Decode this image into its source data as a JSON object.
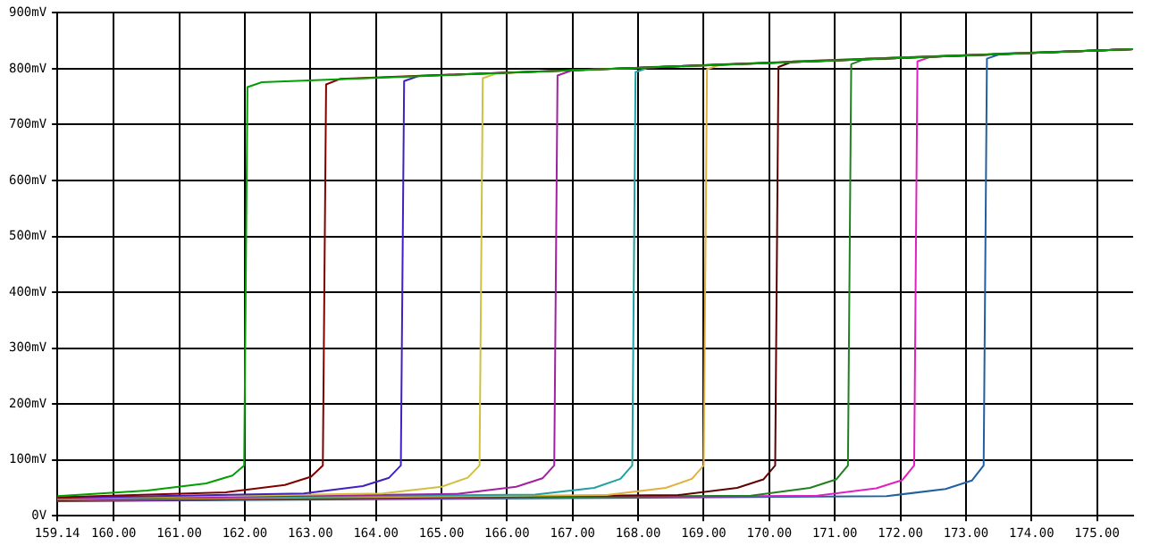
{
  "chart_data": {
    "type": "line",
    "xlim": [
      159.14,
      175.55
    ],
    "ylim": [
      0,
      900
    ],
    "xticks": [
      {
        "value": 159.14,
        "label": "159.14"
      },
      {
        "value": 160,
        "label": "160.00"
      },
      {
        "value": 161,
        "label": "161.00"
      },
      {
        "value": 162,
        "label": "162.00"
      },
      {
        "value": 163,
        "label": "163.00"
      },
      {
        "value": 164,
        "label": "164.00"
      },
      {
        "value": 165,
        "label": "165.00"
      },
      {
        "value": 166,
        "label": "166.00"
      },
      {
        "value": 167,
        "label": "167.00"
      },
      {
        "value": 168,
        "label": "168.00"
      },
      {
        "value": 169,
        "label": "169.00"
      },
      {
        "value": 170,
        "label": "170.00"
      },
      {
        "value": 171,
        "label": "171.00"
      },
      {
        "value": 172,
        "label": "172.00"
      },
      {
        "value": 173,
        "label": "173.00"
      },
      {
        "value": 174,
        "label": "174.00"
      },
      {
        "value": 175,
        "label": "175.00"
      }
    ],
    "yticks": [
      {
        "value": 0,
        "label": "0V"
      },
      {
        "value": 100,
        "label": "100mV"
      },
      {
        "value": 200,
        "label": "200mV"
      },
      {
        "value": 300,
        "label": "300mV"
      },
      {
        "value": 400,
        "label": "400mV"
      },
      {
        "value": 500,
        "label": "500mV"
      },
      {
        "value": 600,
        "label": "600mV"
      },
      {
        "value": 700,
        "label": "700mV"
      },
      {
        "value": 800,
        "label": "800mV"
      },
      {
        "value": 900,
        "label": "900mV"
      }
    ],
    "grid": true,
    "marker": "none",
    "line_style": "solid",
    "series": [
      {
        "color": "#00a000",
        "x": [
          159.14,
          160.51,
          161.41,
          161.81,
          161.99,
          162.04,
          162.26,
          175.55
        ],
        "values": [
          35,
          45,
          58,
          72,
          90,
          767,
          776,
          835
        ]
      },
      {
        "color": "#800000",
        "x": [
          159.14,
          161.71,
          162.61,
          163.01,
          163.19,
          163.24,
          163.46,
          175.55
        ],
        "values": [
          33,
          42,
          55,
          70,
          90,
          772,
          782,
          835
        ]
      },
      {
        "color": "#4020c0",
        "x": [
          159.14,
          162.9,
          163.8,
          164.2,
          164.38,
          164.43,
          164.65,
          175.55
        ],
        "values": [
          32,
          40,
          53,
          68,
          90,
          778,
          787,
          835
        ]
      },
      {
        "color": "#d0c040",
        "x": [
          159.14,
          164.1,
          165.0,
          165.4,
          165.58,
          165.63,
          165.85,
          175.55
        ],
        "values": [
          31,
          40,
          52,
          68,
          90,
          783,
          792,
          835
        ]
      },
      {
        "color": "#a020a0",
        "x": [
          159.14,
          165.24,
          166.14,
          166.54,
          166.72,
          166.77,
          166.99,
          175.55
        ],
        "values": [
          30,
          39,
          52,
          67,
          90,
          788,
          797,
          835
        ]
      },
      {
        "color": "#20a0a0",
        "x": [
          159.14,
          166.43,
          167.33,
          167.73,
          167.91,
          167.96,
          168.18,
          175.55
        ],
        "values": [
          30,
          38,
          50,
          66,
          90,
          794,
          803,
          835
        ]
      },
      {
        "color": "#e0b040",
        "x": [
          159.14,
          167.52,
          168.42,
          168.82,
          169.0,
          169.05,
          169.27,
          175.55
        ],
        "values": [
          29,
          37,
          50,
          66,
          90,
          799,
          808,
          835
        ]
      },
      {
        "color": "#600000",
        "x": [
          159.14,
          168.61,
          169.51,
          169.91,
          170.09,
          170.14,
          170.36,
          175.55
        ],
        "values": [
          28,
          37,
          50,
          65,
          90,
          803,
          813,
          835
        ]
      },
      {
        "color": "#208020",
        "x": [
          159.14,
          169.72,
          170.62,
          171.02,
          171.2,
          171.25,
          171.47,
          175.55
        ],
        "values": [
          28,
          36,
          50,
          65,
          90,
          808,
          818,
          835
        ]
      },
      {
        "color": "#e020c0",
        "x": [
          159.14,
          170.73,
          171.63,
          172.03,
          172.21,
          172.26,
          172.48,
          175.55
        ],
        "values": [
          27,
          36,
          49,
          64,
          90,
          813,
          822,
          835
        ]
      },
      {
        "color": "#2060a0",
        "x": [
          159.14,
          171.79,
          172.69,
          173.09,
          173.27,
          173.32,
          173.54,
          175.55
        ],
        "values": [
          26,
          35,
          48,
          63,
          90,
          818,
          827,
          835
        ]
      }
    ]
  }
}
